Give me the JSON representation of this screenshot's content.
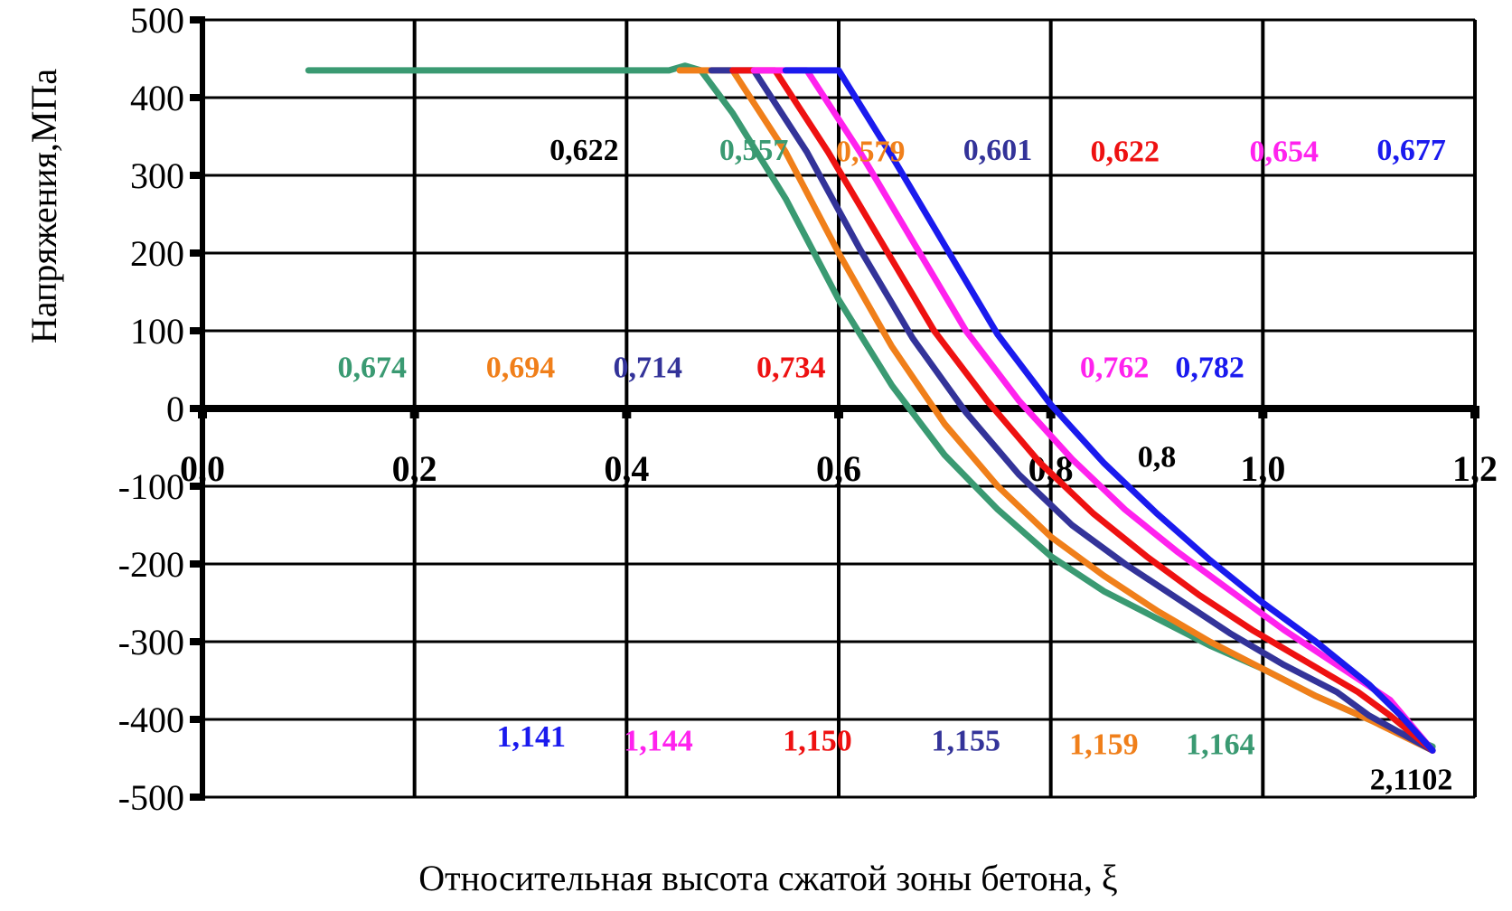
{
  "chart_data": {
    "type": "line",
    "xlabel": "Относительная высота сжатой зоны бетона, ξ",
    "ylabel": "Напряжения,МПа",
    "xlim": [
      0.0,
      1.2
    ],
    "ylim": [
      -500,
      500
    ],
    "x_ticks": [
      "0,0",
      "0,2",
      "0,4",
      "0,6",
      "0,8",
      "1,0",
      "1,2"
    ],
    "y_ticks": [
      "500",
      "400",
      "300",
      "200",
      "100",
      "0",
      "-100",
      "-200",
      "-300",
      "-400",
      "-500"
    ],
    "grid": true,
    "colors": {
      "green": "#3a9a72",
      "orange": "#f07f1a",
      "navy": "#333399",
      "red": "#ee1111",
      "magenta": "#ff22ee",
      "blue": "#1a1aee",
      "black": "#000000"
    },
    "series": [
      {
        "color": "green",
        "values": [
          [
            0.1,
            435
          ],
          [
            0.44,
            435
          ],
          [
            0.455,
            441
          ],
          [
            0.47,
            435
          ],
          [
            0.5,
            380
          ],
          [
            0.55,
            270
          ],
          [
            0.6,
            140
          ],
          [
            0.65,
            30
          ],
          [
            0.7,
            -60
          ],
          [
            0.75,
            -130
          ],
          [
            0.8,
            -190
          ],
          [
            0.85,
            -235
          ],
          [
            0.9,
            -270
          ],
          [
            0.95,
            -305
          ],
          [
            1.0,
            -335
          ],
          [
            1.05,
            -370
          ],
          [
            1.1,
            -400
          ],
          [
            1.16,
            -435
          ]
        ]
      },
      {
        "color": "orange",
        "values": [
          [
            0.45,
            435
          ],
          [
            0.5,
            435
          ],
          [
            0.55,
            330
          ],
          [
            0.6,
            200
          ],
          [
            0.65,
            80
          ],
          [
            0.7,
            -20
          ],
          [
            0.75,
            -100
          ],
          [
            0.8,
            -165
          ],
          [
            0.85,
            -215
          ],
          [
            0.9,
            -260
          ],
          [
            0.95,
            -300
          ],
          [
            1.0,
            -335
          ],
          [
            1.05,
            -370
          ],
          [
            1.1,
            -400
          ],
          [
            1.16,
            -440
          ]
        ]
      },
      {
        "color": "navy",
        "values": [
          [
            0.48,
            435
          ],
          [
            0.52,
            435
          ],
          [
            0.57,
            330
          ],
          [
            0.62,
            205
          ],
          [
            0.67,
            90
          ],
          [
            0.72,
            -5
          ],
          [
            0.77,
            -85
          ],
          [
            0.82,
            -150
          ],
          [
            0.87,
            -200
          ],
          [
            0.92,
            -245
          ],
          [
            0.97,
            -290
          ],
          [
            1.02,
            -330
          ],
          [
            1.07,
            -365
          ],
          [
            1.1,
            -395
          ],
          [
            1.16,
            -440
          ]
        ]
      },
      {
        "color": "red",
        "values": [
          [
            0.5,
            435
          ],
          [
            0.54,
            435
          ],
          [
            0.59,
            330
          ],
          [
            0.64,
            215
          ],
          [
            0.69,
            100
          ],
          [
            0.74,
            10
          ],
          [
            0.79,
            -70
          ],
          [
            0.84,
            -135
          ],
          [
            0.89,
            -190
          ],
          [
            0.94,
            -240
          ],
          [
            0.99,
            -285
          ],
          [
            1.04,
            -325
          ],
          [
            1.09,
            -365
          ],
          [
            1.12,
            -395
          ],
          [
            1.16,
            -440
          ]
        ]
      },
      {
        "color": "magenta",
        "values": [
          [
            0.52,
            435
          ],
          [
            0.57,
            435
          ],
          [
            0.62,
            330
          ],
          [
            0.67,
            215
          ],
          [
            0.72,
            100
          ],
          [
            0.77,
            10
          ],
          [
            0.82,
            -65
          ],
          [
            0.87,
            -130
          ],
          [
            0.92,
            -185
          ],
          [
            0.97,
            -235
          ],
          [
            1.02,
            -285
          ],
          [
            1.07,
            -330
          ],
          [
            1.12,
            -375
          ],
          [
            1.16,
            -440
          ]
        ]
      },
      {
        "color": "blue",
        "values": [
          [
            0.55,
            435
          ],
          [
            0.6,
            435
          ],
          [
            0.65,
            325
          ],
          [
            0.7,
            210
          ],
          [
            0.75,
            95
          ],
          [
            0.8,
            5
          ],
          [
            0.85,
            -70
          ],
          [
            0.9,
            -135
          ],
          [
            0.95,
            -195
          ],
          [
            1.0,
            -250
          ],
          [
            1.05,
            -300
          ],
          [
            1.1,
            -355
          ],
          [
            1.13,
            -395
          ],
          [
            1.16,
            -440
          ]
        ]
      }
    ],
    "annotations": [
      {
        "text": "0,622",
        "color": "black",
        "x": 0.36,
        "y": 320
      },
      {
        "text": "0,557",
        "color": "green",
        "x": 0.52,
        "y": 320
      },
      {
        "text": "0,579",
        "color": "orange",
        "x": 0.63,
        "y": 318
      },
      {
        "text": "0,601",
        "color": "navy",
        "x": 0.75,
        "y": 320
      },
      {
        "text": "0,622",
        "color": "red",
        "x": 0.87,
        "y": 318
      },
      {
        "text": "0,654",
        "color": "magenta",
        "x": 1.02,
        "y": 318
      },
      {
        "text": "0,677",
        "color": "blue",
        "x": 1.14,
        "y": 320
      },
      {
        "text": "0,674",
        "color": "green",
        "x": 0.16,
        "y": 40
      },
      {
        "text": "0,694",
        "color": "orange",
        "x": 0.3,
        "y": 40
      },
      {
        "text": "0,714",
        "color": "navy",
        "x": 0.42,
        "y": 40
      },
      {
        "text": "0,734",
        "color": "red",
        "x": 0.555,
        "y": 40
      },
      {
        "text": "0,762",
        "color": "magenta",
        "x": 0.86,
        "y": 40
      },
      {
        "text": "0,782",
        "color": "blue",
        "x": 0.95,
        "y": 40
      },
      {
        "text": "0,8",
        "color": "black",
        "x": 0.9,
        "y": -75
      },
      {
        "text": "1,141",
        "color": "blue",
        "x": 0.31,
        "y": -435
      },
      {
        "text": "1,144",
        "color": "magenta",
        "x": 0.43,
        "y": -440
      },
      {
        "text": "1,150",
        "color": "red",
        "x": 0.58,
        "y": -440
      },
      {
        "text": "1,155",
        "color": "navy",
        "x": 0.72,
        "y": -440
      },
      {
        "text": "1,159",
        "color": "orange",
        "x": 0.85,
        "y": -445
      },
      {
        "text": "1,164",
        "color": "green",
        "x": 0.96,
        "y": -445
      },
      {
        "text": "2,1102",
        "color": "black",
        "x": 1.14,
        "y": -490
      }
    ]
  }
}
